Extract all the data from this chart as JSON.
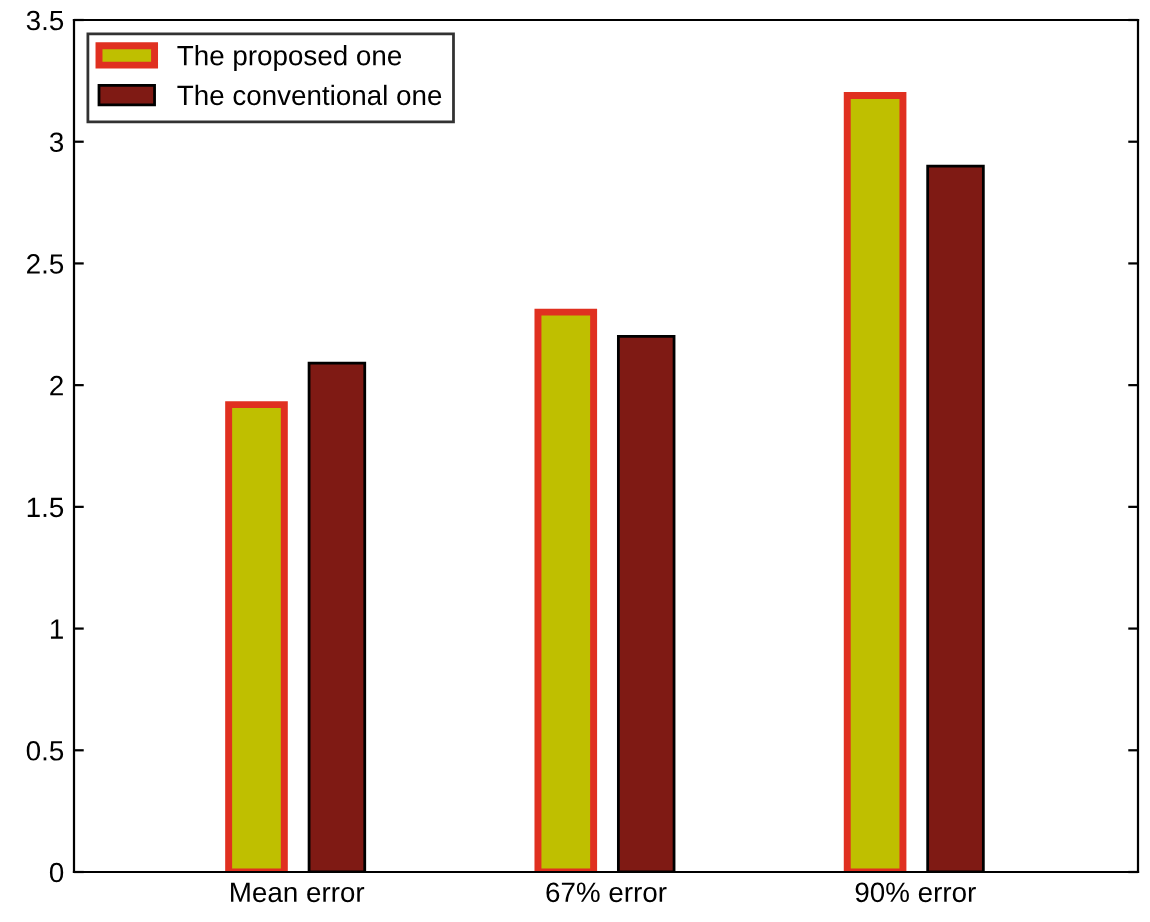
{
  "chart_data": {
    "type": "bar",
    "categories": [
      "Mean error",
      "67% error",
      "90% error"
    ],
    "series": [
      {
        "name": "The proposed one",
        "color": "#bfbf00",
        "values": [
          1.92,
          2.3,
          3.19
        ]
      },
      {
        "name": "The conventional one",
        "color": "#7f1a14",
        "values": [
          2.09,
          2.2,
          2.9
        ]
      }
    ],
    "ylim": [
      0,
      3.5
    ],
    "yticks": [
      0,
      0.5,
      1,
      1.5,
      2,
      2.5,
      3,
      3.5
    ],
    "grid": false,
    "legend": "top left"
  }
}
